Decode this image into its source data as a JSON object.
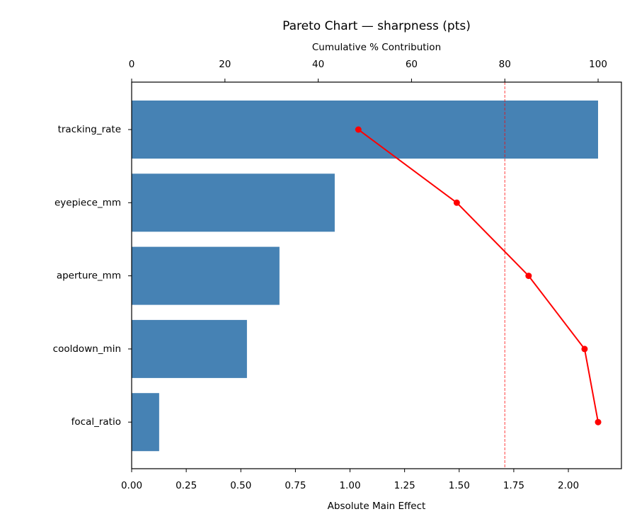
{
  "chart_data": {
    "type": "pareto",
    "title": "Pareto Chart — sharpness (pts)",
    "xlabel": "Absolute Main Effect",
    "x2label": "Cumulative % Contribution",
    "categories": [
      "tracking_rate",
      "eyepiece_mm",
      "aperture_mm",
      "cooldown_min",
      "focal_ratio"
    ],
    "values": [
      2.136,
      0.93,
      0.677,
      0.528,
      0.126
    ],
    "color": "#4682b4",
    "cumulative": [
      48.6,
      69.7,
      85.1,
      97.1,
      100
    ],
    "cumulative_color": "#ff0000",
    "threshold": 80,
    "threshold_color": "#ff0000",
    "xlim": [
      0,
      2.243
    ],
    "xticks": [
      {
        "value": 0,
        "label": "0.00"
      },
      {
        "value": 0.25,
        "label": "0.25"
      },
      {
        "value": 0.5,
        "label": "0.50"
      },
      {
        "value": 0.75,
        "label": "0.75"
      },
      {
        "value": 1,
        "label": "1.00"
      },
      {
        "value": 1.25,
        "label": "1.25"
      },
      {
        "value": 1.5,
        "label": "1.50"
      },
      {
        "value": 1.75,
        "label": "1.75"
      },
      {
        "value": 2,
        "label": "2.00"
      }
    ],
    "x2lim": [
      0,
      105
    ],
    "x2ticks": [
      0,
      20,
      40,
      60,
      80,
      100
    ]
  }
}
